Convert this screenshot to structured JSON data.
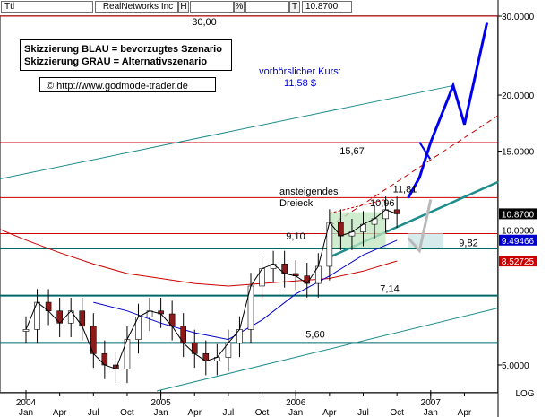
{
  "header": {
    "field1": "Ttl",
    "name": "RealNetworks Inc",
    "box_h": "H",
    "box_pct": "%",
    "box_t": "T",
    "price": "10.8700"
  },
  "chart_data": {
    "type": "line",
    "title": "",
    "log_scale": true,
    "grid": false,
    "legend_box": [
      "Skizzierung BLAU = bevorzugtes Szenario",
      "Skizzierung GRAU = Alternativszenario"
    ],
    "copyright": "© http://www.godmode-trader.de",
    "x_axis": {
      "months": [
        "Jan",
        "Apr",
        "Jul",
        "Oct",
        "Jan",
        "Apr",
        "Jul",
        "Oct",
        "Jan",
        "Apr",
        "Jul",
        "Oct",
        "Jan",
        "Apr"
      ],
      "years": [
        "2004",
        "2005",
        "2006",
        "2007"
      ]
    },
    "y_axis": {
      "ticks": [
        "30.0000",
        "20.0000",
        "15.0000",
        "10.0000",
        "5.0000"
      ],
      "tick_values": [
        30,
        20,
        15,
        10,
        5
      ],
      "scale_label": "LOG",
      "ylim": [
        4.4,
        30.5
      ]
    },
    "price_badges": [
      {
        "label": "10.8700",
        "value": 10.87,
        "color": "#000000"
      },
      {
        "label": "9.49466",
        "value": 9.49466,
        "color": "#0000cc"
      },
      {
        "label": "8.52725",
        "value": 8.52725,
        "color": "#cc0000"
      }
    ],
    "horizontal_levels": [
      {
        "label": "30,00",
        "value": 30.0,
        "color": "#cc0000"
      },
      {
        "label": "15,67",
        "value": 15.67,
        "color": "#cc0000"
      },
      {
        "label": "11,81",
        "value": 11.81,
        "color": "#cc0000"
      },
      {
        "label": "9,82",
        "value": 9.82,
        "color": "#cc0000"
      },
      {
        "label": "9,10",
        "value": 9.1,
        "color": "#006666"
      },
      {
        "label": "7,14",
        "value": 7.14,
        "color": "#006666"
      },
      {
        "label": "5,60",
        "value": 5.6,
        "color": "#006666"
      }
    ],
    "annotations": [
      "ansteigendes",
      "Dreieck",
      "10,96",
      "vorbörslicher Kurs:",
      "11,58 $"
    ],
    "price_series": [
      {
        "date": "2004-01",
        "close": 6.0
      },
      {
        "date": "2004-02",
        "close": 6.9
      },
      {
        "date": "2004-03",
        "close": 6.6
      },
      {
        "date": "2004-04",
        "close": 6.2
      },
      {
        "date": "2004-05",
        "close": 6.6
      },
      {
        "date": "2004-06",
        "close": 6.1
      },
      {
        "date": "2004-07",
        "close": 5.3
      },
      {
        "date": "2004-08",
        "close": 5.0
      },
      {
        "date": "2004-09",
        "close": 4.9
      },
      {
        "date": "2004-10",
        "close": 5.7
      },
      {
        "date": "2004-11",
        "close": 6.4
      },
      {
        "date": "2004-12",
        "close": 6.6
      },
      {
        "date": "2005-01",
        "close": 6.5
      },
      {
        "date": "2005-02",
        "close": 6.1
      },
      {
        "date": "2005-03",
        "close": 5.6
      },
      {
        "date": "2005-04",
        "close": 5.3
      },
      {
        "date": "2005-05",
        "close": 5.1
      },
      {
        "date": "2005-06",
        "close": 5.2
      },
      {
        "date": "2005-07",
        "close": 5.6
      },
      {
        "date": "2005-08",
        "close": 6.0
      },
      {
        "date": "2005-09",
        "close": 7.5
      },
      {
        "date": "2005-10",
        "close": 8.2
      },
      {
        "date": "2005-11",
        "close": 8.4
      },
      {
        "date": "2005-12",
        "close": 8.0
      },
      {
        "date": "2006-01",
        "close": 7.9
      },
      {
        "date": "2006-02",
        "close": 7.6
      },
      {
        "date": "2006-03",
        "close": 8.3
      },
      {
        "date": "2006-04",
        "close": 10.4
      },
      {
        "date": "2006-05",
        "close": 9.7
      },
      {
        "date": "2006-06",
        "close": 9.9
      },
      {
        "date": "2006-07",
        "close": 10.3
      },
      {
        "date": "2006-08",
        "close": 10.6
      },
      {
        "date": "2006-09",
        "close": 11.1
      },
      {
        "date": "2006-10",
        "close": 10.87
      }
    ],
    "sma_blue": [
      {
        "date": "2004-07",
        "value": 6.9
      },
      {
        "date": "2004-10",
        "value": 6.6
      },
      {
        "date": "2005-01",
        "value": 6.2
      },
      {
        "date": "2005-04",
        "value": 5.9
      },
      {
        "date": "2005-07",
        "value": 5.7
      },
      {
        "date": "2005-10",
        "value": 6.3
      },
      {
        "date": "2006-01",
        "value": 7.2
      },
      {
        "date": "2006-04",
        "value": 7.9
      },
      {
        "date": "2006-07",
        "value": 8.8
      },
      {
        "date": "2006-10",
        "value": 9.49
      }
    ],
    "sma_red": [
      {
        "date": "2003-10",
        "value": 10.2
      },
      {
        "date": "2004-01",
        "value": 9.5
      },
      {
        "date": "2004-04",
        "value": 8.9
      },
      {
        "date": "2004-07",
        "value": 8.4
      },
      {
        "date": "2004-10",
        "value": 8.0
      },
      {
        "date": "2005-01",
        "value": 7.8
      },
      {
        "date": "2005-04",
        "value": 7.6
      },
      {
        "date": "2005-07",
        "value": 7.5
      },
      {
        "date": "2005-10",
        "value": 7.6
      },
      {
        "date": "2006-01",
        "value": 7.7
      },
      {
        "date": "2006-04",
        "value": 7.8
      },
      {
        "date": "2006-07",
        "value": 8.1
      },
      {
        "date": "2006-10",
        "value": 8.53
      }
    ],
    "scenario_blue": [
      {
        "date": "2006-11",
        "value": 11.8
      },
      {
        "date": "2006-12",
        "value": 13.1
      },
      {
        "date": "2007-01",
        "value": 15.7
      },
      {
        "date": "2007-03",
        "value": 21.0
      },
      {
        "date": "2007-04",
        "value": 17.2
      },
      {
        "date": "2007-06",
        "value": 29.0
      }
    ],
    "scenario_gray": [
      {
        "date": "2006-11",
        "value": 9.6
      },
      {
        "date": "2006-12",
        "value": 9.0
      },
      {
        "date": "2007-01",
        "value": 11.7
      }
    ]
  }
}
